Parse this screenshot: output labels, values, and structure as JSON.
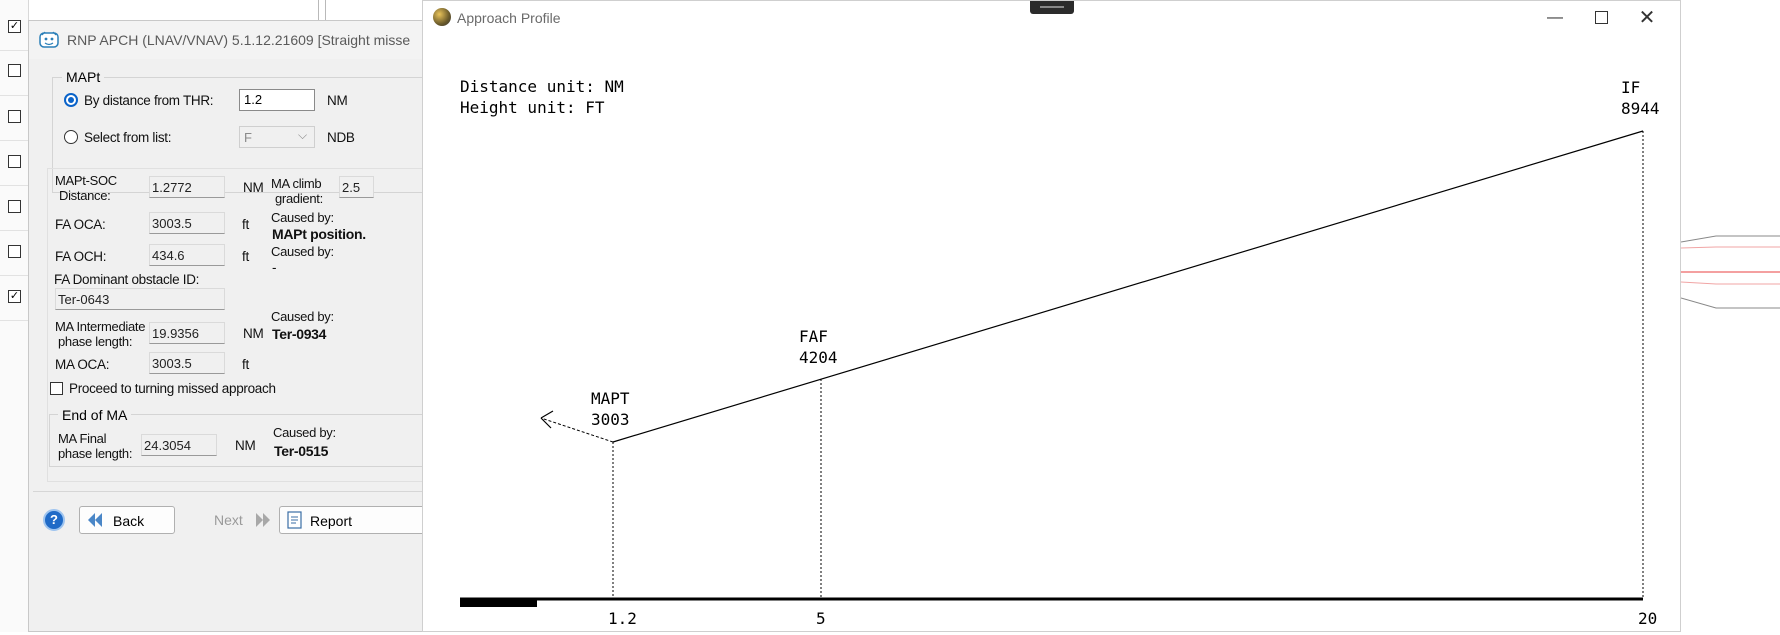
{
  "left_strip": {
    "checkboxes": [
      true,
      false,
      false,
      false,
      false,
      false,
      false,
      true
    ]
  },
  "rnp_dialog": {
    "title": "RNP APCH (LNAV/VNAV) 5.1.12.21609   [Straight misse",
    "mapt_group": {
      "label": "MAPt",
      "by_distance_label": "By distance from THR:",
      "by_distance_value": "1.2",
      "by_distance_unit": "NM",
      "select_list_label": "Select from list:",
      "select_value": "F",
      "select_unit": "NDB"
    },
    "mapt_soc": {
      "label_line1": "MAPt-SOC",
      "label_line2": "Distance:",
      "value": "1.2772",
      "unit": "NM"
    },
    "ma_climb": {
      "label_line1": "MA climb",
      "label_line2": "gradient:",
      "value": "2.5"
    },
    "fa_oca": {
      "label": "FA OCA:",
      "value": "3003.5",
      "unit": "ft",
      "caused_label": "Caused by:",
      "caused_value": "MAPt position."
    },
    "fa_och": {
      "label": "FA OCH:",
      "value": "434.6",
      "unit": "ft",
      "caused_label": "Caused by:",
      "caused_value": "-"
    },
    "fa_dom": {
      "label": "FA Dominant obstacle ID:",
      "value": "Ter-0643"
    },
    "ma_inter": {
      "label_line1": "MA Intermediate",
      "label_line2": "phase length:",
      "value": "19.9356",
      "unit": "NM",
      "caused_label": "Caused by:",
      "caused_value": "Ter-0934"
    },
    "ma_oca": {
      "label": "MA OCA:",
      "value": "3003.5",
      "unit": "ft"
    },
    "proceed": {
      "label": "Proceed to turning missed approach",
      "checked": false
    },
    "end_ma": {
      "label": "End of MA",
      "final_line1": "MA Final",
      "final_line2": "phase length:",
      "final_value": "24.3054",
      "final_unit": "NM",
      "caused_label": "Caused by:",
      "caused_value": "Ter-0515"
    },
    "buttons": {
      "back": "Back",
      "next": "Next",
      "report": "Report"
    }
  },
  "approach_profile": {
    "title": "Approach Profile",
    "distance_unit": "Distance unit: NM",
    "height_unit": "Height unit: FT",
    "points": [
      {
        "name": "MAPT",
        "height": "3003",
        "distance": "1.2"
      },
      {
        "name": "FAF",
        "height": "4204",
        "distance": "5"
      },
      {
        "name": "IF",
        "height": "8944",
        "distance": "20"
      }
    ]
  }
}
